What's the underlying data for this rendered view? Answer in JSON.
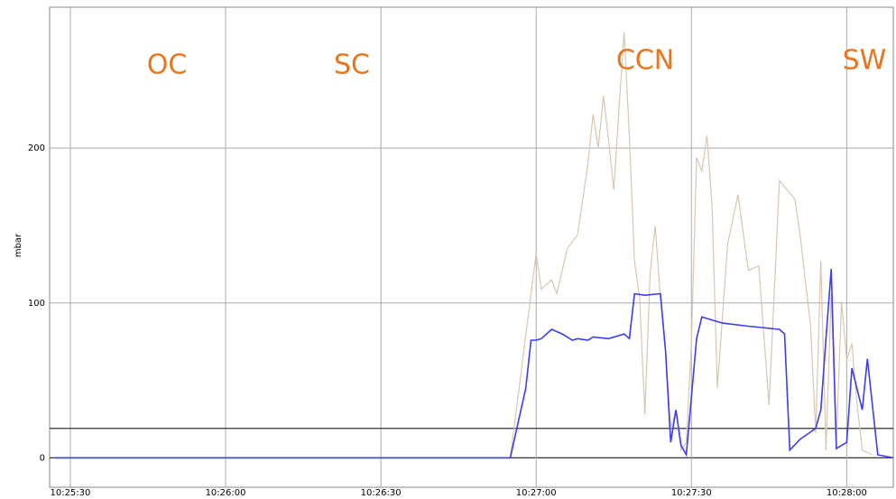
{
  "chart_data": {
    "type": "line",
    "y_label": "mbar",
    "annotations": [
      "OC",
      "SC",
      "CCN",
      "SW"
    ],
    "xlim": [
      "10:25:26",
      "10:28:09"
    ],
    "xticks": [
      "10:25:30",
      "10:26:00",
      "10:26:30",
      "10:27:00",
      "10:27:30",
      "10:28:00"
    ],
    "ylim": [
      -19,
      291
    ],
    "yticks": [
      0,
      100,
      200
    ],
    "grid": true,
    "reference_line": 19,
    "series": [
      {
        "name": "tan",
        "color": "#d9c6b0",
        "x": [
          "10:25:27",
          "10:26:55",
          "10:27:00",
          "10:27:01",
          "10:27:03",
          "10:27:04",
          "10:27:06",
          "10:27:08",
          "10:27:10",
          "10:27:11",
          "10:27:12",
          "10:27:13",
          "10:27:14",
          "10:27:15",
          "10:27:16",
          "10:27:17",
          "10:27:18",
          "10:27:19",
          "10:27:20",
          "10:27:21",
          "10:27:22",
          "10:27:23",
          "10:27:24",
          "10:27:25",
          "10:27:26",
          "10:27:27",
          "10:27:28",
          "10:27:29",
          "10:27:30",
          "10:27:31",
          "10:27:32",
          "10:27:33",
          "10:27:34",
          "10:27:35",
          "10:27:37",
          "10:27:39",
          "10:27:41",
          "10:27:43",
          "10:27:45",
          "10:27:47",
          "10:27:50",
          "10:27:51",
          "10:27:53",
          "10:27:54",
          "10:27:55",
          "10:27:56",
          "10:27:57",
          "10:27:58",
          "10:27:59",
          "10:28:00",
          "10:28:01",
          "10:28:02",
          "10:28:03",
          "10:28:05"
        ],
        "values": [
          0,
          0,
          132,
          109,
          115,
          106,
          135,
          144,
          190,
          222,
          200,
          234,
          205,
          173,
          225,
          275,
          208,
          127,
          103,
          28,
          118,
          150,
          103,
          69,
          19,
          31,
          5,
          10,
          74,
          194,
          185,
          208,
          162,
          45,
          138,
          170,
          121,
          124,
          34,
          179,
          167,
          144,
          86,
          16,
          127,
          5,
          106,
          10,
          101,
          63,
          74,
          35,
          5,
          2
        ]
      },
      {
        "name": "blue",
        "color": "#3c3cf0",
        "x": [
          "10:25:27",
          "10:26:55",
          "10:26:58",
          "10:26:59",
          "10:27:00",
          "10:27:01",
          "10:27:03",
          "10:27:05",
          "10:27:07",
          "10:27:08",
          "10:27:10",
          "10:27:11",
          "10:27:14",
          "10:27:17",
          "10:27:18",
          "10:27:19",
          "10:27:21",
          "10:27:24",
          "10:27:25",
          "10:27:26",
          "10:27:27",
          "10:27:28",
          "10:27:29",
          "10:27:31",
          "10:27:32",
          "10:27:36",
          "10:27:41",
          "10:27:47",
          "10:27:48",
          "10:27:49",
          "10:27:51",
          "10:27:54",
          "10:27:55",
          "10:27:56",
          "10:27:57",
          "10:27:58",
          "10:28:00",
          "10:28:01",
          "10:28:03",
          "10:28:04",
          "10:28:06",
          "10:28:09"
        ],
        "values": [
          0,
          0,
          45,
          76,
          76,
          77,
          83,
          80,
          76,
          77,
          76,
          78,
          77,
          80,
          77,
          106,
          105,
          106,
          69,
          10,
          31,
          8,
          2,
          77,
          91,
          87,
          85,
          83,
          80,
          5,
          12,
          19,
          31,
          77,
          122,
          6,
          10,
          58,
          31,
          64,
          2,
          0
        ]
      }
    ]
  }
}
